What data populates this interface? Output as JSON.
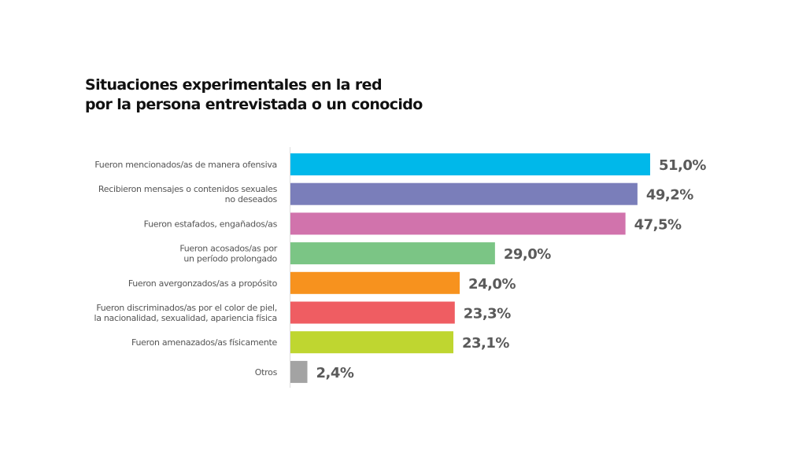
{
  "chart_data": {
    "type": "bar",
    "orientation": "horizontal",
    "title_lines": [
      "Situaciones experimentales en la red",
      "por la persona entrevistada o un conocido"
    ],
    "xlabel": "",
    "ylabel": "",
    "xlim": [
      0,
      51
    ],
    "grid": false,
    "legend": "none",
    "categories": [
      [
        "Fueron mencionados/as de manera ofensiva"
      ],
      [
        "Recibieron mensajes o contenidos sexuales",
        "no deseados"
      ],
      [
        "Fueron estafados, engañados/as"
      ],
      [
        "Fueron acosados/as por",
        "un período prolongado"
      ],
      [
        "Fueron avergonzados/as a propósito"
      ],
      [
        "Fueron discriminados/as por el color de piel,",
        "la nacionalidad, sexualidad, apariencia física"
      ],
      [
        "Fueron amenazados/as físicamente"
      ],
      [
        "Otros"
      ]
    ],
    "values": [
      51.0,
      49.2,
      47.5,
      29.0,
      24.0,
      23.3,
      23.1,
      2.4
    ],
    "value_labels": [
      "51,0%",
      "49,2%",
      "47,5%",
      "29,0%",
      "24,0%",
      "23,3%",
      "23,1%",
      "2,4%"
    ],
    "colors": [
      "#00b8ea",
      "#7a7eba",
      "#d173ac",
      "#7bc585",
      "#f7921e",
      "#ef5d62",
      "#bfd630",
      "#a3a3a3"
    ],
    "unit": "%"
  }
}
